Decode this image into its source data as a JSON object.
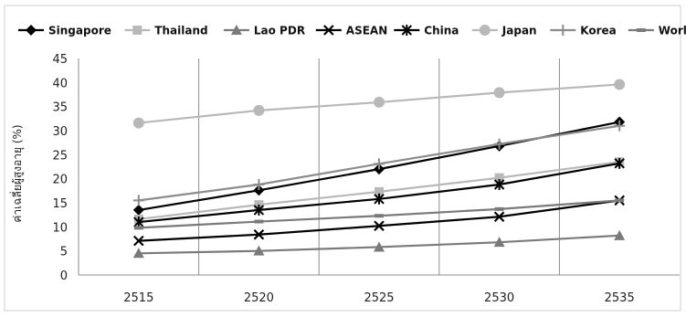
{
  "chart_data": {
    "type": "line",
    "title": "",
    "xlabel": "",
    "ylabel": "ค่าเฉลี่ยผู้สูงอายุ (%)",
    "x": [
      "2515",
      "2520",
      "2525",
      "2530",
      "2535"
    ],
    "ylim": [
      0,
      45
    ],
    "yticks": [
      0,
      5,
      10,
      15,
      20,
      25,
      30,
      35,
      40,
      45
    ],
    "grid": "vertical",
    "legend_position": "top",
    "series": [
      {
        "name": "Singapore",
        "values": [
          13.5,
          17.6,
          22.0,
          26.8,
          31.8
        ],
        "color": "#000000",
        "marker": "diamond"
      },
      {
        "name": "Thailand",
        "values": [
          11.6,
          14.6,
          17.3,
          20.2,
          23.5
        ],
        "color": "#b8b8b8",
        "marker": "square"
      },
      {
        "name": "Lao PDR",
        "values": [
          4.5,
          5.0,
          5.8,
          6.8,
          8.2
        ],
        "color": "#7a7a7a",
        "marker": "triangle"
      },
      {
        "name": "ASEAN",
        "values": [
          7.1,
          8.4,
          10.2,
          12.1,
          15.5
        ],
        "color": "#000000",
        "marker": "x"
      },
      {
        "name": "China",
        "values": [
          11.0,
          13.5,
          15.8,
          18.8,
          23.2
        ],
        "color": "#000000",
        "marker": "asterisk"
      },
      {
        "name": "Japan",
        "values": [
          31.6,
          34.2,
          35.9,
          37.9,
          39.6
        ],
        "color": "#b8b8b8",
        "marker": "circle"
      },
      {
        "name": "Korea",
        "values": [
          15.5,
          18.8,
          23.1,
          27.2,
          31.0
        ],
        "color": "#8c8c8c",
        "marker": "plus"
      },
      {
        "name": "World",
        "values": [
          9.8,
          11.1,
          12.3,
          13.7,
          15.5
        ],
        "color": "#7a7a7a",
        "marker": "dash"
      }
    ]
  }
}
